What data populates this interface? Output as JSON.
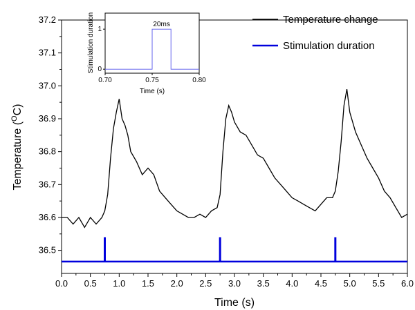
{
  "chart_data": [
    {
      "type": "line",
      "xlabel": "Time (s)",
      "ylabel_main": "Temperature (",
      "ylabel_sup": "O",
      "ylabel_tail": "C)",
      "xlim": [
        0.0,
        6.0
      ],
      "ylim": [
        36.43,
        37.2
      ],
      "x_ticks": [
        "0.0",
        "0.5",
        "1.0",
        "1.5",
        "2.0",
        "2.5",
        "3.0",
        "3.5",
        "4.0",
        "4.5",
        "5.0",
        "5.5",
        "6.0"
      ],
      "y_ticks": [
        "36.5",
        "36.6",
        "36.7",
        "36.8",
        "36.9",
        "37.0",
        "37.1",
        "37.2"
      ],
      "legend_position": "top-right",
      "series": [
        {
          "name": "Temperature change",
          "color": "#000000",
          "x": [
            0.0,
            0.1,
            0.2,
            0.3,
            0.4,
            0.5,
            0.6,
            0.7,
            0.75,
            0.8,
            0.85,
            0.9,
            0.95,
            1.0,
            1.05,
            1.1,
            1.15,
            1.2,
            1.3,
            1.4,
            1.5,
            1.6,
            1.7,
            1.8,
            1.9,
            2.0,
            2.1,
            2.2,
            2.3,
            2.4,
            2.5,
            2.6,
            2.7,
            2.75,
            2.8,
            2.85,
            2.9,
            2.95,
            3.0,
            3.1,
            3.2,
            3.3,
            3.4,
            3.5,
            3.6,
            3.7,
            3.8,
            3.9,
            4.0,
            4.1,
            4.2,
            4.3,
            4.4,
            4.5,
            4.6,
            4.7,
            4.75,
            4.8,
            4.85,
            4.9,
            4.95,
            5.0,
            5.1,
            5.2,
            5.3,
            5.4,
            5.5,
            5.6,
            5.7,
            5.8,
            5.9,
            6.0
          ],
          "y": [
            36.6,
            36.6,
            36.58,
            36.6,
            36.57,
            36.6,
            36.58,
            36.6,
            36.62,
            36.67,
            36.78,
            36.87,
            36.92,
            36.96,
            36.9,
            36.88,
            36.85,
            36.8,
            36.77,
            36.73,
            36.75,
            36.73,
            36.68,
            36.66,
            36.64,
            36.62,
            36.61,
            36.6,
            36.6,
            36.61,
            36.6,
            36.62,
            36.63,
            36.67,
            36.8,
            36.9,
            36.94,
            36.92,
            36.89,
            36.86,
            36.85,
            36.82,
            36.79,
            36.78,
            36.75,
            36.72,
            36.7,
            36.68,
            36.66,
            36.65,
            36.64,
            36.63,
            36.62,
            36.64,
            36.66,
            36.66,
            36.68,
            36.74,
            36.83,
            36.94,
            36.99,
            36.92,
            36.86,
            36.82,
            36.78,
            36.75,
            36.72,
            36.68,
            36.66,
            36.63,
            36.6,
            36.61
          ]
        },
        {
          "name": "Stimulation duration",
          "color": "#0000dd",
          "baseline": 36.466,
          "pulse_top": 36.54,
          "pulse_times": [
            0.75,
            2.75,
            4.75
          ]
        }
      ]
    },
    {
      "type": "line",
      "xlabel": "Time (s)",
      "ylabel": "Stimulation duration",
      "xlim": [
        0.7,
        0.8
      ],
      "ylim": [
        -0.1,
        1.4
      ],
      "x_ticks": [
        "0.70",
        "0.75",
        "0.80"
      ],
      "y_ticks": [
        "0",
        "1"
      ],
      "annotation": "20ms",
      "series": [
        {
          "color": "#6666ee",
          "x": [
            0.7,
            0.75,
            0.75,
            0.77,
            0.77,
            0.8
          ],
          "y": [
            0,
            0,
            1,
            1,
            0,
            0
          ]
        }
      ]
    }
  ]
}
